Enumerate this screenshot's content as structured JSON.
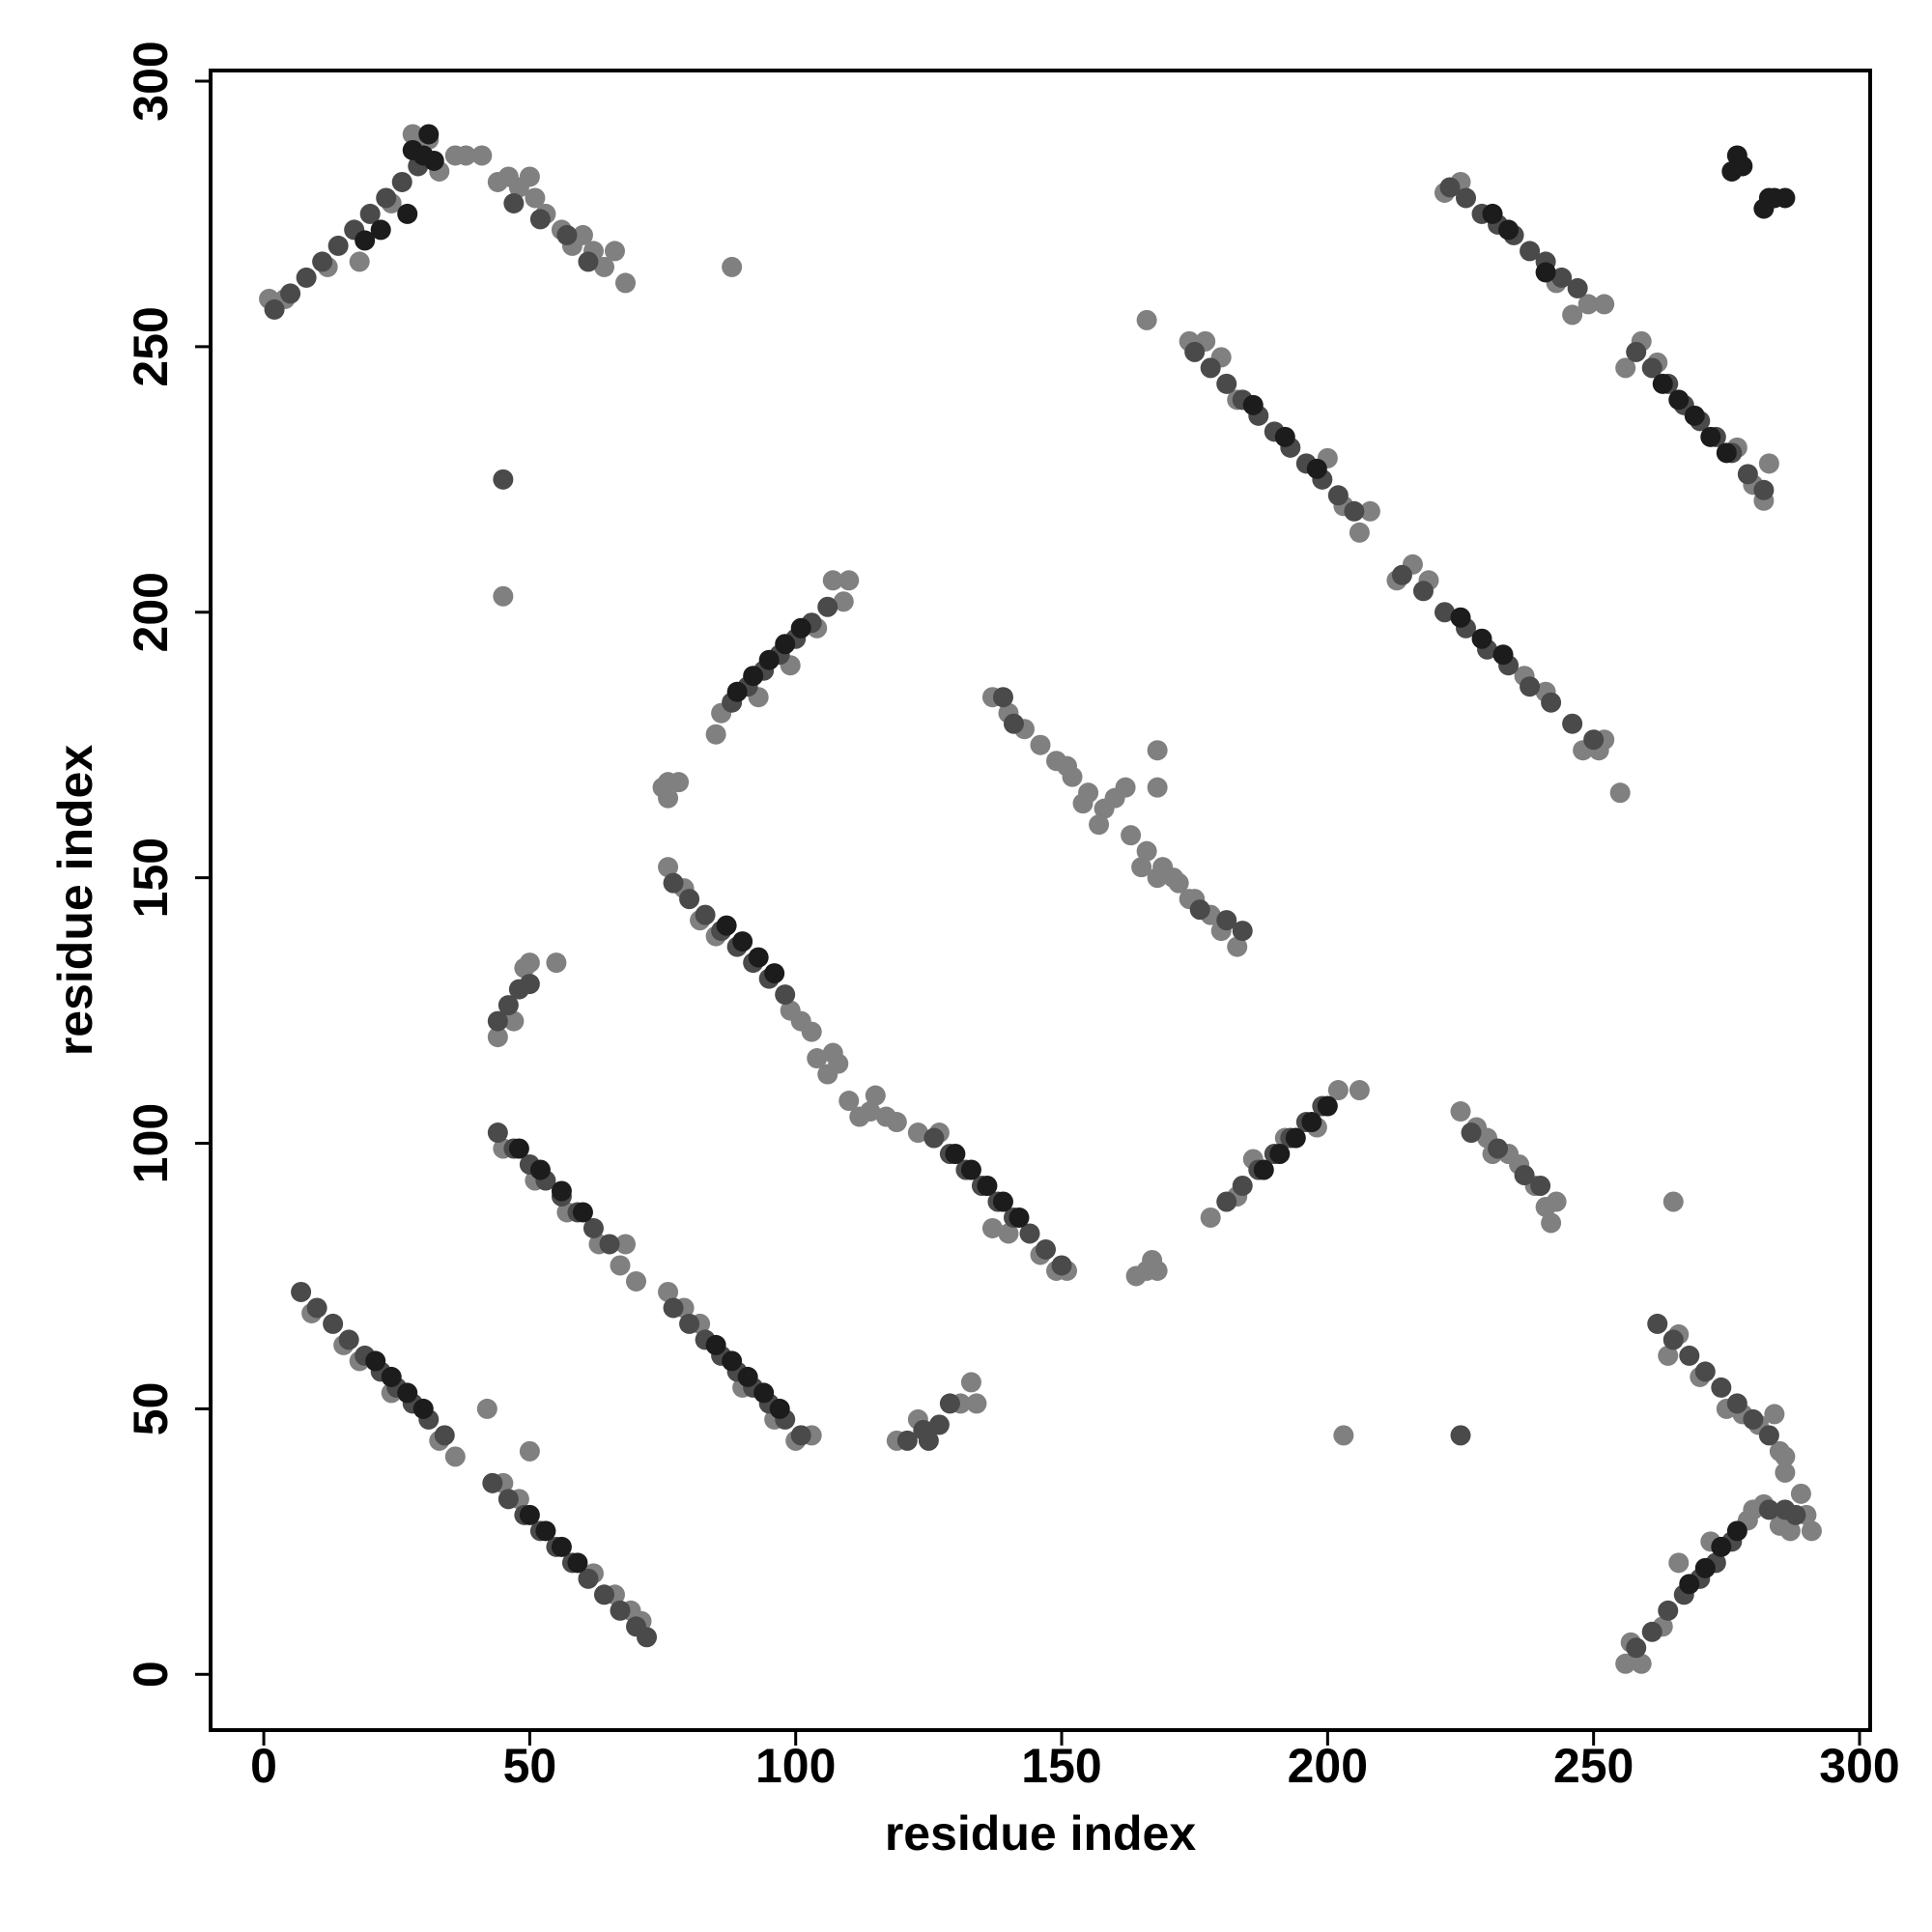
{
  "chart_data": {
    "type": "scatter",
    "x_label": "residue index",
    "y_label": "residue index",
    "xlim": [
      -10,
      302
    ],
    "ylim": [
      -10.5,
      302
    ],
    "xticks": [
      0,
      50,
      100,
      150,
      200,
      250,
      300
    ],
    "yticks": [
      0,
      50,
      100,
      150,
      200,
      250,
      300
    ],
    "grid": false,
    "series": [
      {
        "color": "#808080",
        "x": [
          9,
          15,
          18,
          24,
          33,
          36,
          45,
          48,
          62,
          66,
          69,
          71,
          45,
          51,
          57,
          63,
          67,
          70,
          68,
          76,
          79,
          82,
          90,
          96,
          100,
          103,
          76,
          79,
          82,
          85,
          99,
          101,
          103,
          104,
          106,
          107,
          108,
          110,
          112,
          114,
          115,
          117,
          119,
          123,
          127,
          137,
          140,
          146,
          149,
          151,
          137,
          140,
          143,
          146,
          149,
          152,
          155,
          158,
          163,
          166,
          169,
          172,
          175,
          178,
          151,
          154,
          157,
          165,
          168,
          171,
          174,
          180,
          183,
          160,
          162,
          174,
          177,
          180,
          183,
          200,
          203,
          206,
          208,
          213,
          216,
          219,
          237,
          241,
          248,
          252,
          251,
          222,
          225,
          243,
          246,
          249,
          252,
          256,
          259,
          262,
          277,
          280,
          282,
          283,
          264,
          266,
          270,
          275,
          278,
          281,
          284,
          285,
          286,
          286,
          1,
          4,
          12,
          18,
          24,
          28,
          29,
          31,
          33,
          36,
          38,
          41,
          44,
          46,
          48,
          50,
          51,
          53,
          56,
          58,
          60,
          62,
          64,
          66,
          68,
          85,
          86,
          93,
          99,
          104,
          107,
          109,
          110,
          178,
          183,
          186,
          192,
          198,
          202,
          206,
          256,
          257,
          259,
          263,
          266,
          272,
          279,
          280,
          282,
          285,
          287,
          289,
          290,
          291,
          44,
          47,
          49,
          50,
          55,
          119,
          123,
          131,
          133,
          134,
          225,
          228,
          230,
          231,
          234,
          236,
          239,
          241,
          243,
          242,
          75,
          76,
          78,
          76,
          45,
          88,
          166,
          168,
          168,
          255,
          265,
          203,
          42,
          50,
          164,
          167,
          166,
          168
        ],
        "values": [
          68,
          62,
          59,
          53,
          44,
          41,
          36,
          33,
          19,
          15,
          12,
          10,
          99,
          93,
          87,
          81,
          77,
          74,
          81,
          72,
          69,
          66,
          54,
          48,
          44,
          45,
          152,
          148,
          142,
          139,
          125,
          123,
          121,
          116,
          113,
          117,
          115,
          108,
          105,
          106,
          109,
          105,
          104,
          102,
          102,
          84,
          83,
          79,
          76,
          76,
          184,
          181,
          178,
          175,
          172,
          169,
          166,
          163,
          158,
          155,
          152,
          149,
          146,
          143,
          171,
          164,
          160,
          152,
          150,
          150,
          146,
          140,
          137,
          165,
          167,
          251,
          251,
          248,
          240,
          229,
          220,
          215,
          219,
          206,
          209,
          206,
          188,
          185,
          174,
          176,
          174,
          279,
          281,
          262,
          256,
          258,
          258,
          246,
          251,
          247,
          231,
          224,
          221,
          228,
          60,
          64,
          56,
          50,
          49,
          47,
          49,
          42,
          38,
          41,
          259,
          259,
          265,
          266,
          277,
          290,
          287,
          289,
          283,
          286,
          286,
          286,
          281,
          282,
          280,
          282,
          278,
          275,
          272,
          269,
          271,
          268,
          265,
          268,
          262,
          177,
          181,
          184,
          190,
          197,
          206,
          202,
          206,
          86,
          90,
          97,
          101,
          103,
          110,
          110,
          2,
          6,
          2,
          9,
          21,
          25,
          29,
          31,
          32,
          28,
          27,
          34,
          30,
          27,
          120,
          123,
          133,
          134,
          134,
          44,
          48,
          51,
          55,
          51,
          106,
          103,
          101,
          98,
          98,
          96,
          92,
          88,
          89,
          85,
          167,
          165,
          168,
          168,
          203,
          265,
          255,
          174,
          167,
          166,
          89,
          45,
          50,
          42,
          75,
          78,
          76,
          76
        ]
      },
      {
        "color": "#4a4a4a",
        "x": [
          7,
          10,
          13,
          16,
          19,
          22,
          25,
          28,
          31,
          34,
          43,
          46,
          49,
          52,
          55,
          58,
          61,
          64,
          67,
          70,
          72,
          44,
          47,
          50,
          53,
          56,
          59,
          62,
          65,
          77,
          80,
          83,
          86,
          89,
          92,
          95,
          98,
          101,
          77,
          80,
          83,
          86,
          89,
          92,
          95,
          98,
          126,
          129,
          132,
          135,
          138,
          141,
          144,
          147,
          150,
          139,
          141,
          176,
          181,
          184,
          175,
          178,
          181,
          184,
          187,
          190,
          193,
          196,
          199,
          202,
          205,
          214,
          218,
          222,
          226,
          230,
          234,
          238,
          242,
          246,
          250,
          223,
          226,
          229,
          232,
          235,
          238,
          241,
          244,
          247,
          258,
          261,
          264,
          267,
          270,
          273,
          276,
          279,
          282,
          262,
          265,
          268,
          271,
          274,
          277,
          280,
          283,
          2,
          5,
          8,
          11,
          14,
          17,
          20,
          23,
          26,
          29,
          47,
          52,
          57,
          61,
          88,
          91,
          94,
          97,
          100,
          103,
          106,
          181,
          184,
          187,
          190,
          193,
          196,
          199,
          258,
          261,
          264,
          267,
          270,
          273,
          276,
          283,
          286,
          288,
          44,
          46,
          48,
          50,
          121,
          124,
          127,
          129,
          125,
          227,
          232,
          237,
          240,
          45,
          225
        ],
        "values": [
          72,
          69,
          66,
          63,
          60,
          57,
          54,
          51,
          48,
          45,
          36,
          33,
          30,
          27,
          24,
          21,
          18,
          15,
          12,
          9,
          7,
          102,
          99,
          96,
          93,
          90,
          87,
          84,
          81,
          69,
          66,
          63,
          60,
          57,
          54,
          51,
          48,
          45,
          149,
          146,
          143,
          140,
          137,
          134,
          131,
          128,
          101,
          98,
          95,
          92,
          89,
          86,
          83,
          80,
          77,
          184,
          179,
          144,
          142,
          140,
          249,
          246,
          243,
          240,
          237,
          234,
          231,
          228,
          225,
          222,
          219,
          207,
          204,
          200,
          197,
          193,
          190,
          186,
          183,
          179,
          176,
          280,
          278,
          275,
          273,
          271,
          268,
          266,
          263,
          261,
          249,
          246,
          243,
          239,
          236,
          233,
          230,
          226,
          223,
          66,
          63,
          60,
          57,
          54,
          51,
          48,
          45,
          257,
          260,
          263,
          266,
          269,
          272,
          275,
          278,
          281,
          284,
          277,
          274,
          271,
          266,
          183,
          186,
          189,
          192,
          195,
          198,
          201,
          89,
          92,
          95,
          98,
          101,
          104,
          107,
          5,
          8,
          12,
          15,
          18,
          21,
          25,
          31,
          31,
          30,
          123,
          126,
          129,
          130,
          44,
          46,
          47,
          51,
          44,
          102,
          99,
          94,
          92,
          225,
          45
        ]
      },
      {
        "color": "#1c1c1c",
        "x": [
          21,
          24,
          27,
          30,
          50,
          53,
          56,
          59,
          48,
          52,
          56,
          60,
          85,
          88,
          91,
          94,
          97,
          87,
          90,
          93,
          96,
          130,
          133,
          136,
          139,
          142,
          186,
          192,
          198,
          225,
          229,
          233,
          231,
          234,
          241,
          263,
          266,
          269,
          272,
          275,
          19,
          22,
          27,
          30,
          28,
          32,
          31,
          89,
          92,
          95,
          98,
          101,
          188,
          191,
          194,
          197,
          200,
          268,
          271,
          274,
          277,
          276,
          277,
          278,
          283,
          282,
          284,
          286
        ],
        "values": [
          59,
          56,
          53,
          50,
          30,
          27,
          24,
          21,
          99,
          95,
          91,
          87,
          62,
          59,
          56,
          53,
          50,
          141,
          138,
          135,
          132,
          98,
          95,
          92,
          89,
          86,
          239,
          233,
          227,
          199,
          195,
          192,
          275,
          272,
          264,
          243,
          240,
          237,
          233,
          230,
          270,
          272,
          275,
          286,
          287,
          285,
          290,
          185,
          188,
          191,
          194,
          197,
          95,
          98,
          101,
          104,
          107,
          17,
          20,
          24,
          27,
          283,
          286,
          284,
          278,
          276,
          278,
          278
        ]
      }
    ]
  }
}
